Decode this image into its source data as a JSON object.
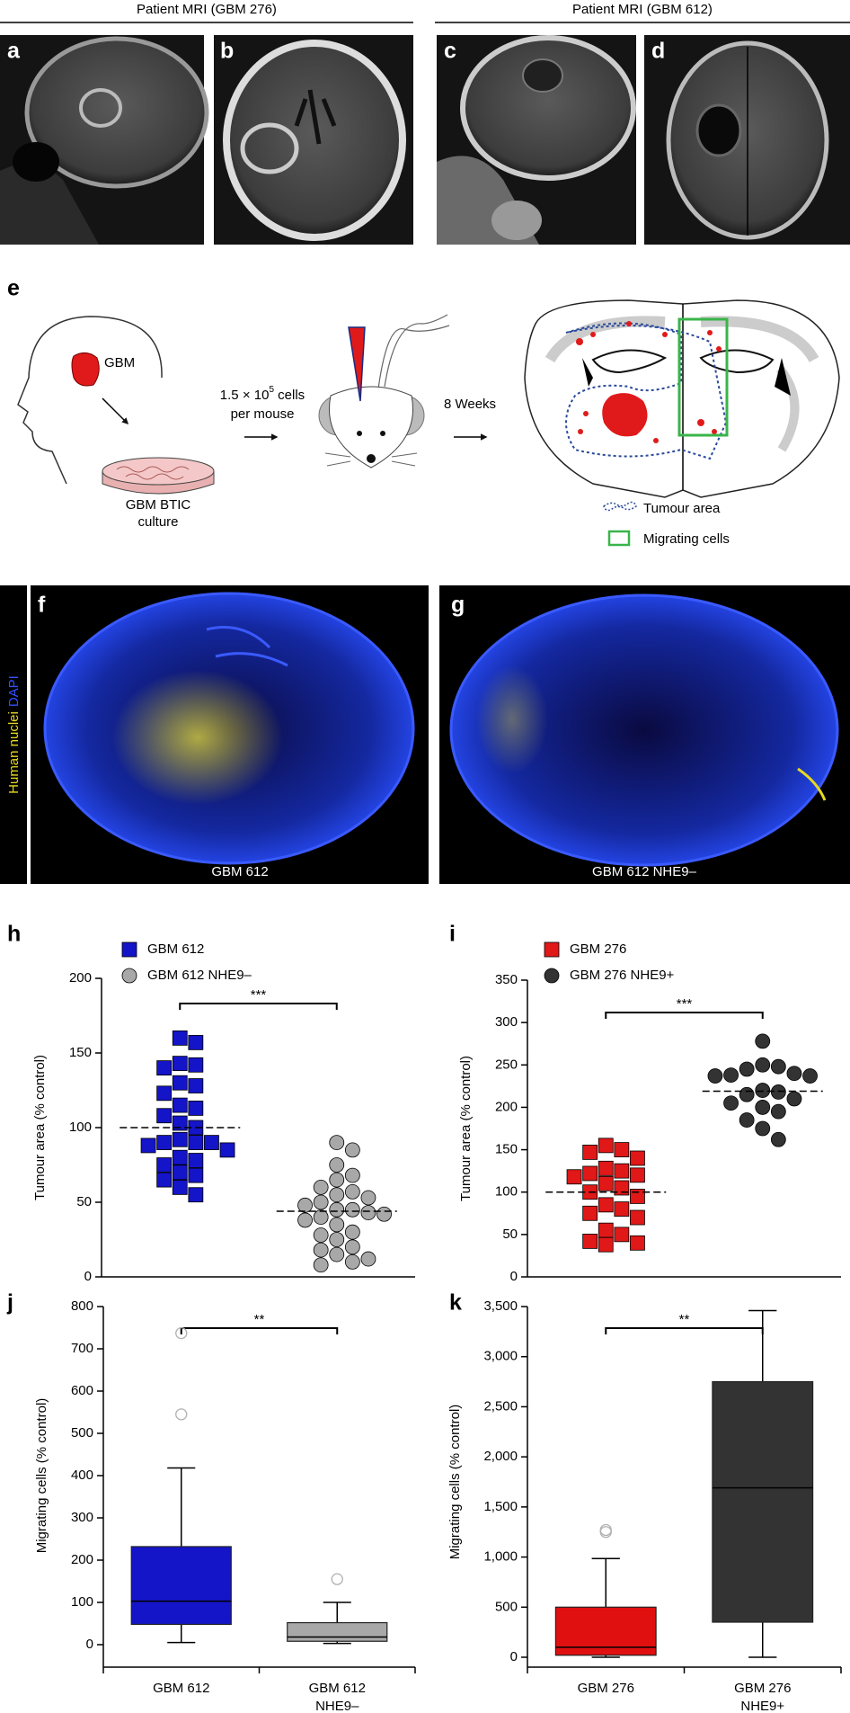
{
  "headers": [
    "Patient MRI (GBM 276)",
    "Patient MRI (GBM 612)"
  ],
  "panel_letters": [
    "a",
    "b",
    "c",
    "d",
    "e",
    "f",
    "g",
    "h",
    "i",
    "j",
    "k"
  ],
  "diagram": {
    "gbm": "GBM",
    "cells_line": [
      "1.5 × 10",
      "5",
      " cells"
    ],
    "per_mouse": "per mouse",
    "weeks": "8 Weeks",
    "culture": [
      "GBM BTIC",
      "culture"
    ],
    "legend": [
      "Tumour area",
      "Migrating cells"
    ]
  },
  "stain_label": [
    "Human nuclei",
    "DAPI"
  ],
  "image_labels": [
    "GBM 612",
    "GBM 612 NHE9–"
  ],
  "chart_data": [
    {
      "type": "scatter",
      "ylabel": "Tumour area (% control)",
      "annotation": "***",
      "ylim": [
        0,
        200
      ],
      "yticks": [
        0,
        50,
        100,
        150,
        200
      ],
      "series": [
        {
          "name": "GBM 612",
          "color": "#1414c8",
          "marker": "square",
          "mean": 100,
          "values": [
            160,
            157,
            143,
            142,
            140,
            130,
            128,
            123,
            115,
            113,
            108,
            103,
            100,
            92,
            90,
            90,
            90,
            88,
            85,
            80,
            78,
            75,
            70,
            68,
            65,
            60,
            55
          ]
        },
        {
          "name": "GBM 612 NHE9–",
          "color": "#a8a8a8",
          "marker": "circle",
          "mean": 44,
          "values": [
            90,
            85,
            75,
            68,
            65,
            60,
            57,
            55,
            53,
            50,
            48,
            45,
            45,
            43,
            42,
            40,
            38,
            35,
            30,
            28,
            25,
            20,
            18,
            15,
            12,
            10,
            8
          ]
        }
      ]
    },
    {
      "type": "scatter",
      "ylabel": "Tumour area (% control)",
      "annotation": "***",
      "ylim": [
        0,
        350
      ],
      "yticks": [
        0,
        50,
        100,
        150,
        200,
        250,
        300,
        350
      ],
      "series": [
        {
          "name": "GBM 276",
          "color": "#e01818",
          "marker": "square",
          "mean": 100,
          "values": [
            155,
            150,
            147,
            140,
            128,
            125,
            122,
            120,
            118,
            110,
            105,
            100,
            95,
            85,
            80,
            75,
            70,
            55,
            50,
            42,
            40,
            38
          ]
        },
        {
          "name": "GBM 276 NHE9+",
          "color": "#333333",
          "marker": "circle",
          "mean": 219,
          "values": [
            278,
            250,
            248,
            245,
            240,
            238,
            237,
            237,
            220,
            218,
            215,
            210,
            205,
            200,
            195,
            185,
            175,
            162
          ]
        }
      ]
    },
    {
      "type": "box",
      "ylabel": "Migrating cells (% control)",
      "annotation": "**",
      "ylim": [
        0,
        800
      ],
      "yticks": [
        0,
        100,
        200,
        300,
        400,
        500,
        600,
        700,
        800
      ],
      "categories": [
        [
          "GBM 612"
        ],
        [
          "GBM 612",
          "NHE9–"
        ]
      ],
      "boxes": [
        {
          "color": "#1414c8",
          "whisker_low": 5,
          "q1": 48,
          "median": 103,
          "q3": 232,
          "whisker_high": 418,
          "outliers": [
            545,
            737
          ]
        },
        {
          "color": "#a8a8a8",
          "whisker_low": 3,
          "q1": 8,
          "median": 18,
          "q3": 52,
          "whisker_high": 100,
          "outliers": [
            155
          ]
        }
      ]
    },
    {
      "type": "box",
      "ylabel": "Migrating cells (% control)",
      "annotation": "**",
      "ylim": [
        0,
        3500
      ],
      "yticks": [
        0,
        500,
        {
          "value": 1000,
          "label": "1,000"
        },
        {
          "value": 1500,
          "label": "1,500"
        },
        {
          "value": 2000,
          "label": "2,000"
        },
        {
          "value": 2500,
          "label": "2,500"
        },
        {
          "value": 3000,
          "label": "3,000"
        },
        {
          "value": 3500,
          "label": "3,500"
        }
      ],
      "categories": [
        [
          "GBM 276"
        ],
        [
          "GBM 276",
          "NHE9+"
        ]
      ],
      "boxes": [
        {
          "color": "#e01010",
          "whisker_low": 0,
          "q1": 20,
          "median": 100,
          "q3": 500,
          "whisker_high": 985,
          "outliers": [
            1250,
            1270
          ]
        },
        {
          "color": "#333333",
          "whisker_low": 0,
          "q1": 350,
          "median": 1690,
          "q3": 2750,
          "whisker_high": 3460,
          "outliers": []
        }
      ]
    }
  ]
}
